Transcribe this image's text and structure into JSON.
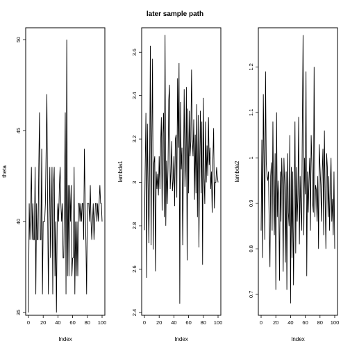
{
  "title": "later sample path",
  "chart_data": [
    {
      "type": "line",
      "xlabel": "Index",
      "ylabel": "theta",
      "xlim": [
        0,
        100
      ],
      "ylim": [
        35,
        50.5
      ],
      "xticks": [
        0,
        20,
        40,
        60,
        80,
        100
      ],
      "yticks": [
        35,
        40,
        45,
        50
      ],
      "x_start": 1,
      "values": [
        35,
        41,
        39,
        41,
        43,
        39,
        41,
        39,
        39,
        43,
        36,
        41,
        39,
        39,
        43,
        46,
        39,
        39,
        44,
        36,
        40,
        40,
        40,
        41,
        44,
        47,
        41,
        36,
        40,
        43,
        38,
        40,
        43,
        36,
        42,
        43,
        37,
        40,
        35,
        40,
        41,
        40,
        42,
        43,
        41,
        40,
        41,
        38,
        38,
        42,
        46,
        36,
        50,
        37,
        42,
        37,
        42,
        40,
        42,
        37,
        38,
        38,
        43,
        36,
        40,
        37,
        40,
        37,
        41,
        41,
        40,
        41,
        40,
        41,
        41,
        39,
        44,
        41,
        39,
        36,
        41,
        41,
        41,
        40,
        42,
        40,
        39,
        40,
        41,
        39,
        40,
        41,
        41,
        40,
        41,
        40,
        41,
        42,
        41,
        41,
        40
      ]
    },
    {
      "type": "line",
      "xlabel": "Index",
      "ylabel": "lambda1",
      "xlim": [
        0,
        100
      ],
      "ylim": [
        2.4,
        3.7
      ],
      "xticks": [
        0,
        20,
        40,
        60,
        80,
        100
      ],
      "yticks": [
        2.4,
        2.6,
        2.8,
        3.0,
        3.2,
        3.4,
        3.6
      ],
      "x_start": 1,
      "values": [
        2.78,
        3.06,
        3.32,
        2.56,
        3.27,
        3.0,
        2.72,
        3.05,
        3.63,
        2.71,
        3.2,
        3.57,
        2.69,
        3.09,
        3.12,
        2.59,
        3.05,
        2.97,
        3.04,
        2.94,
        3.12,
        2.97,
        3.18,
        3.3,
        2.87,
        3.22,
        3.32,
        2.84,
        3.68,
        2.8,
        3.1,
        2.9,
        3.06,
        3.38,
        3.45,
        2.97,
        3.05,
        3.19,
        2.96,
        3.01,
        3.12,
        2.89,
        3.2,
        3.22,
        2.93,
        3.48,
        3.16,
        3.55,
        2.44,
        3.37,
        3.06,
        3.16,
        2.71,
        3.06,
        3.43,
        2.98,
        3.09,
        3.44,
        2.64,
        3.34,
        2.95,
        3.33,
        3.12,
        3.19,
        3.52,
        3.2,
        3.12,
        3.29,
        2.92,
        3.22,
        2.95,
        3.36,
        2.84,
        3.31,
        2.7,
        3.1,
        3.33,
        2.95,
        3.28,
        2.62,
        3.39,
        3.02,
        2.9,
        3.28,
        3.0,
        3.17,
        3.03,
        3.3,
        3.08,
        3.16,
        2.97,
        3.05,
        2.86,
        3.11,
        3.25,
        2.88,
        3.0,
        3.0,
        3.07,
        3.03,
        3.0
      ]
    },
    {
      "type": "line",
      "xlabel": "Index",
      "ylabel": "lambda2",
      "xlim": [
        0,
        100
      ],
      "ylim": [
        0.66,
        1.28
      ],
      "xticks": [
        0,
        20,
        40,
        60,
        80,
        100
      ],
      "yticks": [
        0.7,
        0.8,
        0.9,
        1.0,
        1.1,
        1.2
      ],
      "x_start": 1,
      "values": [
        0.84,
        1.04,
        0.78,
        1.14,
        1.0,
        0.82,
        1.19,
        0.99,
        0.96,
        0.95,
        0.97,
        0.85,
        0.76,
        0.96,
        0.99,
        0.84,
        1.08,
        0.9,
        0.83,
        1.01,
        0.71,
        1.1,
        0.87,
        0.95,
        0.9,
        0.73,
        0.97,
        0.86,
        1.0,
        0.94,
        0.75,
        1.0,
        0.94,
        0.77,
        0.97,
        0.71,
        1.01,
        0.88,
        0.85,
        1.05,
        0.68,
        0.98,
        0.78,
        0.97,
        0.72,
        0.89,
        1.08,
        0.79,
        0.98,
        0.86,
        0.92,
        1.09,
        0.81,
        0.96,
        0.88,
        0.84,
        1.07,
        1.27,
        0.83,
        1.0,
        0.92,
        1.19,
        0.74,
        0.97,
        0.88,
        0.95,
        1.0,
        0.84,
        1.05,
        0.99,
        0.9,
        0.88,
        1.2,
        0.87,
        0.94,
        0.93,
        0.86,
        0.96,
        0.8,
        1.03,
        0.98,
        0.94,
        0.86,
        0.97,
        1.02,
        0.83,
        1.06,
        0.91,
        0.8,
        1.01,
        0.98,
        0.87,
        0.96,
        0.84,
        0.94,
        1.0,
        0.86,
        0.91,
        0.83,
        0.97,
        0.8
      ]
    }
  ]
}
